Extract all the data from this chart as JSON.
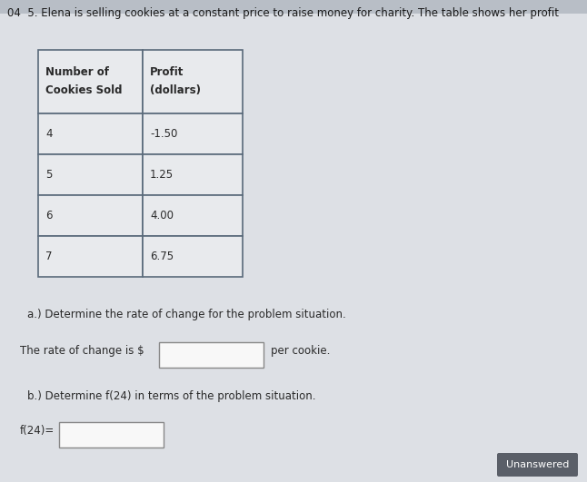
{
  "background_color": "#b8bec6",
  "paper_color": "#e8eaec",
  "title_text": "04  5. Elena is selling cookies at a constant price to raise money for charity. The table shows her profit",
  "title_fontsize": 8.5,
  "title_color": "#1a1a1a",
  "col1_header_line1": "Number of",
  "col1_header_line2": "Cookies Sold",
  "col2_header_line1": "Profit",
  "col2_header_line2": "(dollars)",
  "table_rows": [
    [
      "4",
      "-1.50"
    ],
    [
      "5",
      "1.25"
    ],
    [
      "6",
      "4.00"
    ],
    [
      "7",
      "6.75"
    ]
  ],
  "question_a": "a.) Determine the rate of change for the problem situation.",
  "rate_label": "The rate of change is $",
  "per_cookie": "per cookie.",
  "question_b": "b.) Determine f(24) in terms of the problem situation.",
  "f24_label": "f(24)=",
  "unanswered_text": "Unanswered",
  "text_color": "#2a2a2a",
  "table_border_color": "#5a6a7a",
  "input_box_bg": "#f5f5f5",
  "font_size_body": 8.5,
  "font_size_table": 8.5
}
